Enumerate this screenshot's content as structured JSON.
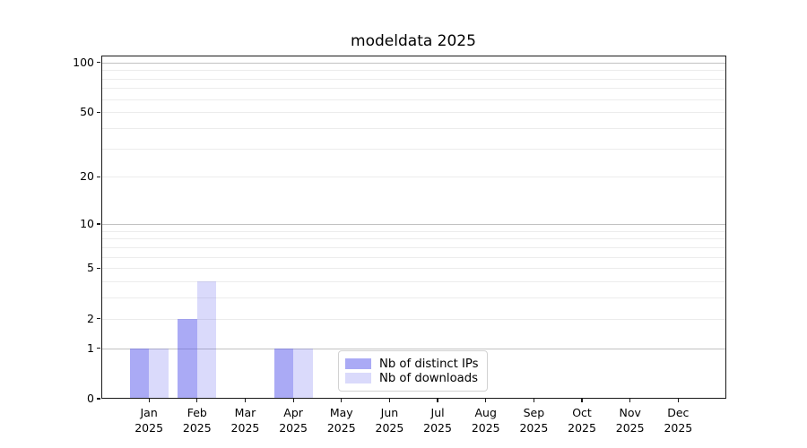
{
  "figure": {
    "background": "#ffffff",
    "spine_color": "#1a1a1a"
  },
  "chart_data": {
    "type": "bar",
    "title": "modeldata 2025",
    "categories": [
      "Jan 2025",
      "Feb 2025",
      "Mar 2025",
      "Apr 2025",
      "May 2025",
      "Jun 2025",
      "Jul 2025",
      "Aug 2025",
      "Sep 2025",
      "Oct 2025",
      "Nov 2025",
      "Dec 2025"
    ],
    "x_tick_month_line": [
      "Jan",
      "Feb",
      "Mar",
      "Apr",
      "May",
      "Jun",
      "Jul",
      "Aug",
      "Sep",
      "Oct",
      "Nov",
      "Dec"
    ],
    "x_tick_year_line": "2025",
    "series": [
      {
        "name": "Nb of distinct IPs",
        "color": "rgba(85,85,235,0.5)",
        "values": [
          1,
          2,
          0,
          1,
          0,
          0,
          0,
          0,
          0,
          0,
          0,
          0
        ]
      },
      {
        "name": "Nb of downloads",
        "color": "rgba(85,85,235,0.22)",
        "values": [
          1,
          4,
          0,
          1,
          0,
          0,
          0,
          0,
          0,
          0,
          0,
          0
        ]
      }
    ],
    "xlabel": "",
    "ylabel": "",
    "y_axis": {
      "scale": "log1p",
      "tick_values": [
        0,
        1,
        2,
        5,
        10,
        20,
        50,
        100
      ],
      "major_gridline_values": [
        1,
        10,
        100
      ],
      "minor_gridline_values": [
        2,
        3,
        4,
        5,
        6,
        7,
        8,
        9,
        20,
        30,
        40,
        50,
        60,
        70,
        80,
        90
      ],
      "ylim": [
        0,
        110
      ]
    },
    "grid": {
      "major_color": "#c2c2c2",
      "minor_color": "#ececec"
    },
    "legend": {
      "position": "lower center",
      "entries": [
        "Nb of distinct IPs",
        "Nb of downloads"
      ]
    }
  }
}
